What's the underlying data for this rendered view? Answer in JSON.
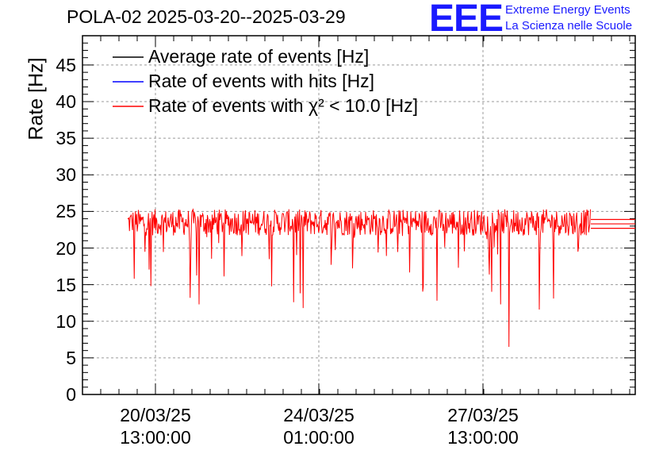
{
  "title": "POLA-02 2025-03-20--2025-03-29",
  "logo": {
    "mark": "EEE",
    "line1": "Extreme Energy Events",
    "line2": "La Scienza nelle Scuole"
  },
  "chart_data": {
    "type": "line",
    "ylabel": "Rate [Hz]",
    "xlabel": "",
    "ylim": [
      0,
      49
    ],
    "yticks": [
      "0",
      "5",
      "10",
      "15",
      "20",
      "25",
      "30",
      "35",
      "40",
      "45"
    ],
    "xticks": [
      {
        "date": "20/03/25",
        "time": "13:00:00"
      },
      {
        "date": "24/03/25",
        "time": "01:00:00"
      },
      {
        "date": "27/03/25",
        "time": "13:00:00"
      }
    ],
    "grid": true,
    "legend_position": "top-left",
    "series": [
      {
        "name": "Average rate of events [Hz]",
        "color": "#000000",
        "mean": 23.5
      },
      {
        "name": "Rate of events with hits [Hz]",
        "color": "#0000ff",
        "mean": 23.5
      },
      {
        "name": "Rate of events with χ² < 10.0 [Hz]",
        "color": "#ff0000",
        "mean": 23.5,
        "min": 6.5,
        "max": 26
      }
    ],
    "data_range": {
      "start": "2025-03-20 03:00",
      "end": "2025-03-29 00:00"
    }
  }
}
